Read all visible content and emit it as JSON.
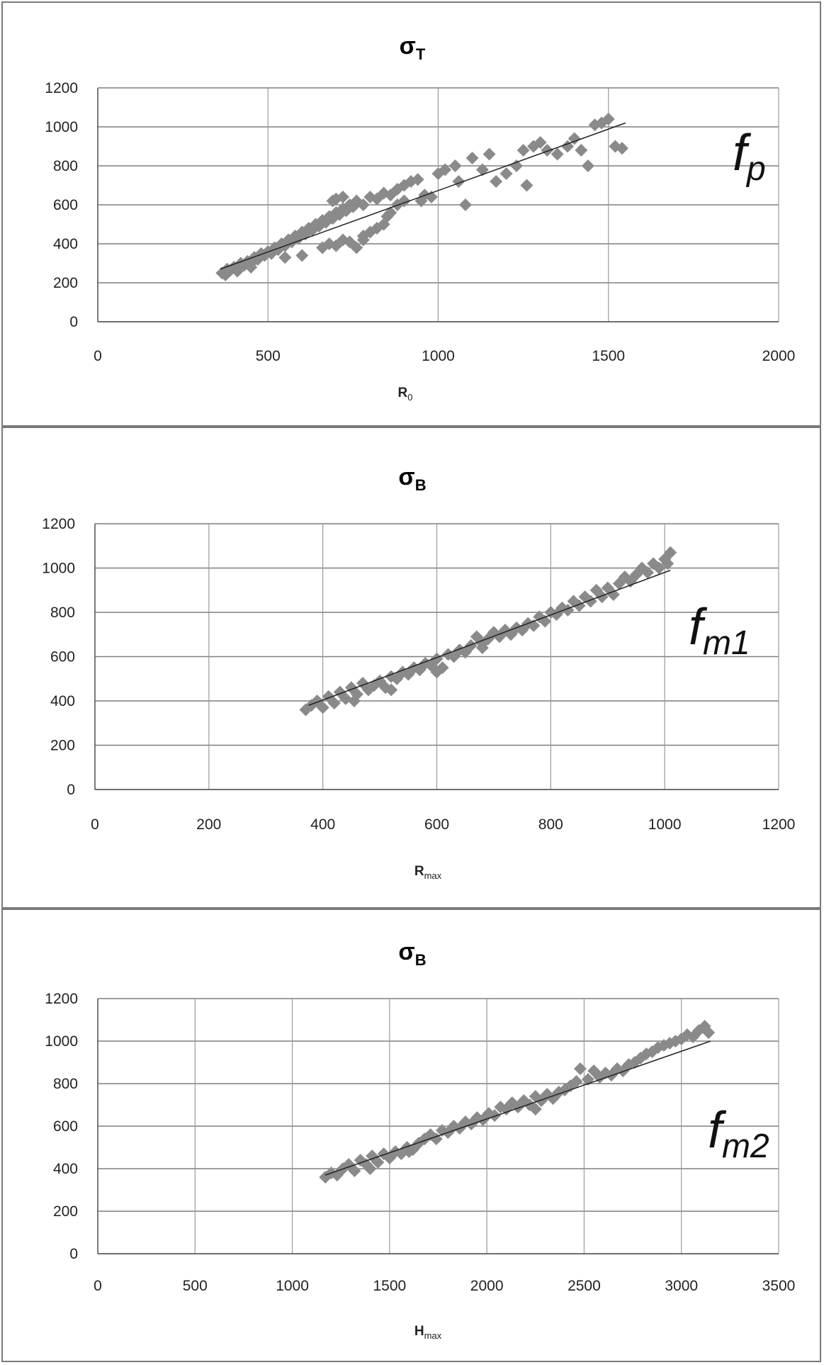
{
  "chart_data": [
    {
      "type": "scatter",
      "title": "σ",
      "title_sub": "T",
      "xlabel": "R",
      "xlabel_sub": "0",
      "ylabel": "",
      "xlim": [
        0,
        2000
      ],
      "ylim": [
        0,
        1200
      ],
      "xticks": [
        "0",
        "500",
        "1000",
        "1500",
        "2000"
      ],
      "yticks": [
        "0",
        "200",
        "400",
        "600",
        "800",
        "1000",
        "1200"
      ],
      "grid": "horizontal and vertical major gridlines",
      "annotation": "f",
      "annotation_sub": "p",
      "marker_color": "#8a8a8a",
      "trend": {
        "x": [
          360,
          1550
        ],
        "y": [
          270,
          1020
        ]
      },
      "series": [
        {
          "values": [
            [
              365,
              250
            ],
            [
              375,
              240
            ],
            [
              380,
              270
            ],
            [
              390,
              265
            ],
            [
              400,
              280
            ],
            [
              410,
              260
            ],
            [
              420,
              300
            ],
            [
              430,
              290
            ],
            [
              440,
              310
            ],
            [
              450,
              300
            ],
            [
              460,
              330
            ],
            [
              470,
              320
            ],
            [
              480,
              350
            ],
            [
              490,
              340
            ],
            [
              500,
              360
            ],
            [
              510,
              350
            ],
            [
              520,
              380
            ],
            [
              530,
              370
            ],
            [
              540,
              400
            ],
            [
              550,
              390
            ],
            [
              560,
              420
            ],
            [
              570,
              410
            ],
            [
              580,
              440
            ],
            [
              590,
              430
            ],
            [
              600,
              460
            ],
            [
              610,
              450
            ],
            [
              620,
              480
            ],
            [
              630,
              470
            ],
            [
              640,
              500
            ],
            [
              650,
              490
            ],
            [
              660,
              520
            ],
            [
              670,
              510
            ],
            [
              680,
              540
            ],
            [
              690,
              530
            ],
            [
              700,
              560
            ],
            [
              710,
              550
            ],
            [
              720,
              580
            ],
            [
              730,
              570
            ],
            [
              740,
              600
            ],
            [
              750,
              590
            ],
            [
              760,
              620
            ],
            [
              780,
              600
            ],
            [
              800,
              640
            ],
            [
              820,
              630
            ],
            [
              840,
              660
            ],
            [
              860,
              650
            ],
            [
              880,
              680
            ],
            [
              900,
              700
            ],
            [
              920,
              720
            ],
            [
              940,
              730
            ],
            [
              690,
              620
            ],
            [
              700,
              630
            ],
            [
              720,
              640
            ],
            [
              660,
              380
            ],
            [
              680,
              400
            ],
            [
              700,
              390
            ],
            [
              720,
              420
            ],
            [
              740,
              410
            ],
            [
              760,
              380
            ],
            [
              780,
              440
            ],
            [
              800,
              460
            ],
            [
              820,
              480
            ],
            [
              840,
              500
            ],
            [
              860,
              560
            ],
            [
              880,
              600
            ],
            [
              900,
              620
            ],
            [
              950,
              620
            ],
            [
              980,
              640
            ],
            [
              1000,
              760
            ],
            [
              1020,
              780
            ],
            [
              1050,
              800
            ],
            [
              1080,
              600
            ],
            [
              1100,
              840
            ],
            [
              1130,
              780
            ],
            [
              1150,
              860
            ],
            [
              1170,
              720
            ],
            [
              1200,
              760
            ],
            [
              1230,
              800
            ],
            [
              1250,
              880
            ],
            [
              1280,
              900
            ],
            [
              1300,
              920
            ],
            [
              1320,
              880
            ],
            [
              1350,
              860
            ],
            [
              1380,
              900
            ],
            [
              1400,
              940
            ],
            [
              1420,
              880
            ],
            [
              1440,
              800
            ],
            [
              1460,
              1010
            ],
            [
              1480,
              1020
            ],
            [
              1500,
              1040
            ],
            [
              1520,
              900
            ],
            [
              1540,
              890
            ],
            [
              1260,
              700
            ],
            [
              1060,
              720
            ],
            [
              960,
              650
            ],
            [
              850,
              540
            ],
            [
              780,
              420
            ],
            [
              600,
              340
            ],
            [
              550,
              330
            ],
            [
              450,
              280
            ]
          ]
        }
      ]
    },
    {
      "type": "scatter",
      "title": "σ",
      "title_sub": "B",
      "xlabel": "R",
      "xlabel_sub": "max",
      "ylabel": "",
      "xlim": [
        0,
        1200
      ],
      "ylim": [
        0,
        1200
      ],
      "xticks": [
        "0",
        "200",
        "400",
        "600",
        "800",
        "1000",
        "1200"
      ],
      "yticks": [
        "0",
        "200",
        "400",
        "600",
        "800",
        "1000",
        "1200"
      ],
      "grid": "horizontal and vertical major gridlines",
      "annotation": "f",
      "annotation_sub": "m1",
      "marker_color": "#8a8a8a",
      "trend": {
        "x": [
          375,
          1010
        ],
        "y": [
          380,
          990
        ]
      },
      "series": [
        {
          "values": [
            [
              370,
              360
            ],
            [
              380,
              380
            ],
            [
              390,
              400
            ],
            [
              400,
              370
            ],
            [
              410,
              420
            ],
            [
              420,
              390
            ],
            [
              430,
              440
            ],
            [
              440,
              410
            ],
            [
              450,
              460
            ],
            [
              460,
              430
            ],
            [
              470,
              480
            ],
            [
              480,
              450
            ],
            [
              490,
              470
            ],
            [
              500,
              490
            ],
            [
              510,
              460
            ],
            [
              520,
              510
            ],
            [
              530,
              500
            ],
            [
              540,
              530
            ],
            [
              550,
              520
            ],
            [
              560,
              550
            ],
            [
              570,
              540
            ],
            [
              580,
              570
            ],
            [
              590,
              560
            ],
            [
              600,
              590
            ],
            [
              610,
              550
            ],
            [
              620,
              610
            ],
            [
              630,
              600
            ],
            [
              640,
              630
            ],
            [
              650,
              620
            ],
            [
              660,
              650
            ],
            [
              670,
              690
            ],
            [
              680,
              660
            ],
            [
              690,
              680
            ],
            [
              700,
              710
            ],
            [
              710,
              690
            ],
            [
              720,
              720
            ],
            [
              730,
              700
            ],
            [
              740,
              730
            ],
            [
              750,
              720
            ],
            [
              760,
              750
            ],
            [
              770,
              740
            ],
            [
              780,
              780
            ],
            [
              790,
              760
            ],
            [
              800,
              800
            ],
            [
              810,
              790
            ],
            [
              820,
              820
            ],
            [
              830,
              810
            ],
            [
              840,
              850
            ],
            [
              850,
              830
            ],
            [
              860,
              870
            ],
            [
              870,
              850
            ],
            [
              880,
              900
            ],
            [
              890,
              870
            ],
            [
              900,
              910
            ],
            [
              910,
              880
            ],
            [
              920,
              930
            ],
            [
              930,
              960
            ],
            [
              940,
              940
            ],
            [
              950,
              970
            ],
            [
              960,
              1000
            ],
            [
              970,
              980
            ],
            [
              980,
              1020
            ],
            [
              990,
              1000
            ],
            [
              1000,
              1040
            ],
            [
              1010,
              1070
            ],
            [
              1005,
              1020
            ],
            [
              455,
              400
            ],
            [
              520,
              450
            ],
            [
              600,
              530
            ],
            [
              680,
              640
            ]
          ]
        }
      ]
    },
    {
      "type": "scatter",
      "title": "σ",
      "title_sub": "B",
      "xlabel": "H",
      "xlabel_sub": "max",
      "ylabel": "",
      "xlim": [
        0,
        3500
      ],
      "ylim": [
        0,
        1200
      ],
      "xticks": [
        "0",
        "500",
        "1000",
        "1500",
        "2000",
        "2500",
        "3000",
        "3500"
      ],
      "yticks": [
        "0",
        "200",
        "400",
        "600",
        "800",
        "1000",
        "1200"
      ],
      "grid": "horizontal and vertical major gridlines",
      "annotation": "f",
      "annotation_sub": "m2",
      "marker_color": "#8a8a8a",
      "trend": {
        "x": [
          1170,
          3150
        ],
        "y": [
          370,
          1000
        ]
      },
      "series": [
        {
          "values": [
            [
              1170,
              360
            ],
            [
              1200,
              380
            ],
            [
              1230,
              370
            ],
            [
              1260,
              400
            ],
            [
              1290,
              420
            ],
            [
              1320,
              390
            ],
            [
              1350,
              440
            ],
            [
              1380,
              420
            ],
            [
              1410,
              460
            ],
            [
              1440,
              430
            ],
            [
              1470,
              470
            ],
            [
              1500,
              450
            ],
            [
              1530,
              480
            ],
            [
              1560,
              470
            ],
            [
              1590,
              500
            ],
            [
              1620,
              490
            ],
            [
              1650,
              520
            ],
            [
              1680,
              540
            ],
            [
              1710,
              560
            ],
            [
              1740,
              540
            ],
            [
              1770,
              580
            ],
            [
              1800,
              570
            ],
            [
              1830,
              600
            ],
            [
              1860,
              590
            ],
            [
              1890,
              620
            ],
            [
              1920,
              610
            ],
            [
              1950,
              640
            ],
            [
              1980,
              630
            ],
            [
              2010,
              660
            ],
            [
              2040,
              650
            ],
            [
              2070,
              690
            ],
            [
              2100,
              680
            ],
            [
              2130,
              710
            ],
            [
              2160,
              690
            ],
            [
              2190,
              720
            ],
            [
              2220,
              700
            ],
            [
              2250,
              740
            ],
            [
              2280,
              720
            ],
            [
              2310,
              750
            ],
            [
              2340,
              730
            ],
            [
              2370,
              760
            ],
            [
              2400,
              770
            ],
            [
              2430,
              790
            ],
            [
              2460,
              810
            ],
            [
              2480,
              870
            ],
            [
              2520,
              820
            ],
            [
              2550,
              860
            ],
            [
              2580,
              830
            ],
            [
              2610,
              850
            ],
            [
              2640,
              840
            ],
            [
              2670,
              870
            ],
            [
              2700,
              860
            ],
            [
              2730,
              890
            ],
            [
              2760,
              900
            ],
            [
              2790,
              920
            ],
            [
              2820,
              940
            ],
            [
              2850,
              950
            ],
            [
              2880,
              970
            ],
            [
              2910,
              980
            ],
            [
              2940,
              990
            ],
            [
              2970,
              1000
            ],
            [
              3000,
              1010
            ],
            [
              3030,
              1030
            ],
            [
              3060,
              1020
            ],
            [
              3090,
              1050
            ],
            [
              3120,
              1070
            ],
            [
              3140,
              1040
            ],
            [
              1400,
              400
            ],
            [
              1600,
              480
            ],
            [
              2250,
              680
            ]
          ]
        }
      ]
    }
  ]
}
